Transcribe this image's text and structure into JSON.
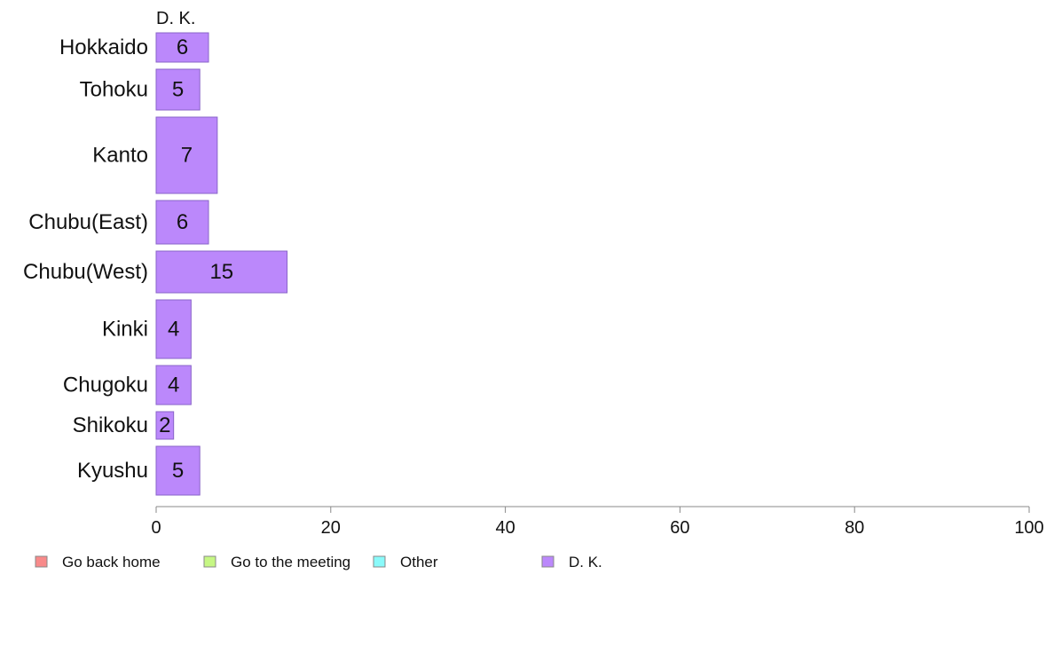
{
  "chart_data": {
    "type": "bar",
    "orientation": "horizontal",
    "stacked": true,
    "categories": [
      "Hokkaido",
      "Tohoku",
      "Kanto",
      "Chubu(East)",
      "Chubu(West)",
      "Kinki",
      "Chugoku",
      "Shikoku",
      "Kyushu"
    ],
    "series": [
      {
        "name": "Go back home",
        "color": "#f88a8a",
        "values": [
          0,
          0,
          0,
          0,
          0,
          0,
          0,
          0,
          0
        ]
      },
      {
        "name": "Go to the meeting",
        "color": "#c6f784",
        "values": [
          0,
          0,
          0,
          0,
          0,
          0,
          0,
          0,
          0
        ]
      },
      {
        "name": "Other",
        "color": "#8afafa",
        "values": [
          0,
          0,
          0,
          0,
          0,
          0,
          0,
          0,
          0
        ]
      },
      {
        "name": "D. K.",
        "color": "#bb88fb",
        "values": [
          6,
          5,
          7,
          6,
          15,
          4,
          4,
          2,
          5
        ]
      }
    ],
    "data_labels": [
      "6",
      "5",
      "7",
      "6",
      "15",
      "4",
      "4",
      "2",
      "5"
    ],
    "series_header": "D. K.",
    "xlim": [
      0,
      100
    ],
    "xticks": [
      0,
      20,
      40,
      60,
      80,
      100
    ],
    "xtick_labels": [
      "0",
      "20",
      "40",
      "60",
      "80",
      "100"
    ],
    "title": "",
    "xlabel": "",
    "ylabel": "",
    "grid": false,
    "legend_position": "bottom"
  }
}
